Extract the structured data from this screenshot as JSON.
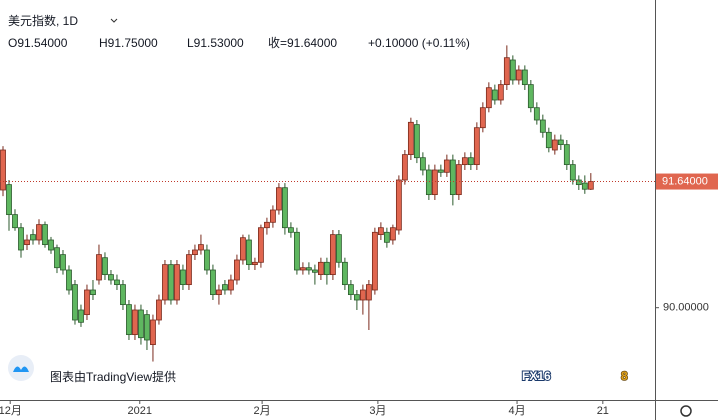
{
  "chart_data": {
    "type": "candlestick",
    "title": "美元指数, 1D",
    "ohlc_line": [
      "O91.54000",
      "H91.75000",
      "L91.53000",
      "收=91.64000",
      "+0.10000 (+0.11%)"
    ],
    "up_color": "#e0664f",
    "down_color": "#5fb760",
    "ohlc": [
      [
        91.53,
        92.1,
        91.45,
        92.05
      ],
      [
        91.6,
        91.66,
        91.0,
        91.21
      ],
      [
        91.21,
        91.28,
        91.0,
        91.04
      ],
      [
        91.04,
        91.1,
        90.65,
        90.75
      ],
      [
        90.82,
        90.95,
        90.75,
        90.88
      ],
      [
        90.95,
        91.02,
        90.82,
        90.88
      ],
      [
        90.88,
        91.15,
        90.82,
        91.08
      ],
      [
        91.08,
        91.12,
        90.78,
        90.82
      ],
      [
        90.88,
        90.92,
        90.7,
        90.75
      ],
      [
        90.78,
        90.82,
        90.45,
        90.52
      ],
      [
        90.69,
        90.75,
        90.43,
        90.49
      ],
      [
        90.49,
        90.55,
        90.17,
        90.23
      ],
      [
        90.3,
        90.36,
        89.78,
        89.84
      ],
      [
        89.97,
        90.04,
        89.75,
        89.81
      ],
      [
        89.91,
        90.3,
        89.84,
        90.23
      ],
      [
        90.23,
        90.36,
        90.1,
        90.17
      ],
      [
        90.36,
        90.82,
        90.3,
        90.69
      ],
      [
        90.65,
        90.72,
        90.36,
        90.43
      ],
      [
        90.43,
        90.49,
        90.3,
        90.36
      ],
      [
        90.36,
        90.43,
        90.23,
        90.3
      ],
      [
        90.3,
        90.36,
        89.97,
        90.04
      ],
      [
        90.04,
        90.1,
        89.58,
        89.65
      ],
      [
        89.65,
        90.04,
        89.58,
        89.97
      ],
      [
        89.97,
        90.04,
        89.52,
        89.61
      ],
      [
        89.91,
        89.97,
        89.45,
        89.58
      ],
      [
        89.52,
        89.91,
        89.3,
        89.84
      ],
      [
        89.84,
        90.17,
        89.78,
        90.1
      ],
      [
        90.1,
        90.62,
        90.04,
        90.56
      ],
      [
        90.56,
        90.62,
        90.04,
        90.1
      ],
      [
        90.1,
        90.62,
        90.04,
        90.56
      ],
      [
        90.49,
        90.56,
        90.23,
        90.3
      ],
      [
        90.3,
        90.75,
        90.23,
        90.69
      ],
      [
        90.69,
        90.82,
        90.62,
        90.75
      ],
      [
        90.75,
        90.95,
        90.69,
        90.82
      ],
      [
        90.75,
        90.82,
        90.43,
        90.49
      ],
      [
        90.49,
        90.56,
        90.1,
        90.17
      ],
      [
        90.17,
        90.3,
        90.04,
        90.23
      ],
      [
        90.3,
        90.36,
        90.17,
        90.23
      ],
      [
        90.23,
        90.43,
        90.17,
        90.36
      ],
      [
        90.36,
        90.69,
        90.3,
        90.62
      ],
      [
        90.62,
        90.95,
        90.56,
        90.91
      ],
      [
        90.88,
        90.95,
        90.49,
        90.56
      ],
      [
        90.56,
        90.65,
        90.49,
        90.59
      ],
      [
        90.59,
        91.08,
        90.52,
        91.04
      ],
      [
        91.04,
        91.17,
        90.95,
        91.11
      ],
      [
        91.11,
        91.33,
        91.04,
        91.27
      ],
      [
        91.27,
        91.62,
        91.21,
        91.56
      ],
      [
        91.56,
        91.62,
        90.95,
        91.04
      ],
      [
        91.04,
        91.11,
        90.91,
        90.98
      ],
      [
        90.98,
        91.04,
        90.43,
        90.49
      ],
      [
        90.49,
        90.59,
        90.43,
        90.52
      ],
      [
        90.52,
        90.59,
        90.43,
        90.49
      ],
      [
        90.49,
        90.56,
        90.3,
        90.46
      ],
      [
        90.43,
        90.65,
        90.36,
        90.59
      ],
      [
        90.59,
        90.65,
        90.3,
        90.43
      ],
      [
        90.43,
        91.01,
        90.36,
        90.95
      ],
      [
        90.95,
        91.01,
        90.52,
        90.59
      ],
      [
        90.59,
        90.65,
        90.23,
        90.3
      ],
      [
        90.3,
        90.36,
        90.1,
        90.17
      ],
      [
        90.17,
        90.23,
        89.97,
        90.1
      ],
      [
        90.1,
        90.3,
        89.91,
        90.23
      ],
      [
        90.1,
        90.36,
        89.71,
        90.3
      ],
      [
        90.23,
        91.04,
        90.17,
        90.98
      ],
      [
        90.95,
        91.11,
        90.88,
        91.04
      ],
      [
        90.98,
        91.04,
        90.78,
        90.85
      ],
      [
        90.88,
        91.08,
        90.82,
        91.04
      ],
      [
        91.01,
        91.72,
        90.95,
        91.66
      ],
      [
        91.66,
        92.05,
        91.6,
        91.99
      ],
      [
        91.99,
        92.47,
        91.92,
        92.41
      ],
      [
        92.38,
        92.44,
        91.88,
        91.95
      ],
      [
        91.95,
        92.02,
        91.72,
        91.79
      ],
      [
        91.79,
        91.86,
        91.4,
        91.47
      ],
      [
        91.47,
        91.86,
        91.4,
        91.79
      ],
      [
        91.79,
        91.86,
        91.7,
        91.76
      ],
      [
        91.76,
        91.99,
        91.7,
        91.92
      ],
      [
        91.92,
        91.99,
        91.33,
        91.47
      ],
      [
        91.47,
        91.92,
        91.4,
        91.86
      ],
      [
        91.86,
        92.02,
        91.79,
        91.95
      ],
      [
        91.95,
        92.02,
        91.79,
        91.86
      ],
      [
        91.86,
        92.41,
        91.79,
        92.34
      ],
      [
        92.34,
        92.67,
        92.28,
        92.6
      ],
      [
        92.6,
        92.93,
        92.54,
        92.86
      ],
      [
        92.83,
        92.9,
        92.64,
        92.7
      ],
      [
        92.7,
        92.96,
        92.64,
        92.9
      ],
      [
        92.9,
        93.41,
        92.83,
        93.25
      ],
      [
        93.22,
        93.28,
        92.9,
        92.96
      ],
      [
        92.96,
        93.15,
        92.9,
        93.09
      ],
      [
        93.09,
        93.15,
        92.83,
        92.9
      ],
      [
        92.9,
        92.96,
        92.54,
        92.6
      ],
      [
        92.6,
        92.67,
        92.38,
        92.44
      ],
      [
        92.44,
        92.51,
        92.21,
        92.28
      ],
      [
        92.28,
        92.34,
        92.02,
        92.08
      ],
      [
        92.05,
        92.25,
        91.99,
        92.18
      ],
      [
        92.18,
        92.25,
        92.05,
        92.12
      ],
      [
        92.12,
        92.18,
        91.79,
        91.86
      ],
      [
        91.86,
        91.92,
        91.6,
        91.66
      ],
      [
        91.66,
        91.72,
        91.53,
        91.6
      ],
      [
        91.62,
        91.72,
        91.48,
        91.54
      ],
      [
        91.54,
        91.75,
        91.53,
        91.64
      ]
    ],
    "xlim": [
      -0.5,
      108.7
    ],
    "xticks": [
      {
        "value": 1.2,
        "label": "12月"
      },
      {
        "value": 22.8,
        "label": "2021"
      },
      {
        "value": 43.2,
        "label": "2月"
      },
      {
        "value": 62.5,
        "label": "3月"
      },
      {
        "value": 85.7,
        "label": "4月"
      },
      {
        "value": 100,
        "label": "21"
      }
    ],
    "ylim": [
      88.8,
      94.0
    ],
    "yticks": [
      {
        "value": 90,
        "label": "90.00000"
      }
    ],
    "last_price": {
      "value": 91.64,
      "label": "91.64000"
    },
    "attribution": "图表由TradingView提供",
    "logo": [
      "FX16",
      "8"
    ]
  }
}
